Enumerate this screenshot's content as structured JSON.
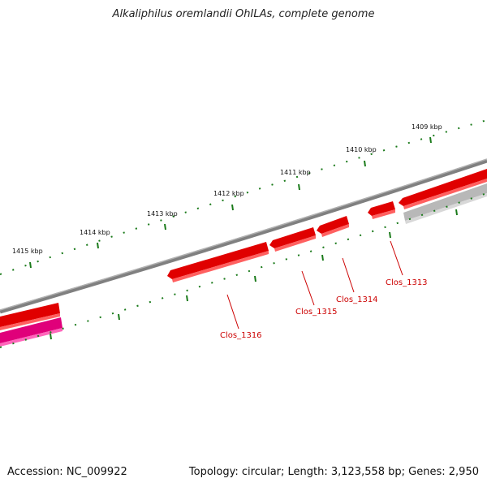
{
  "title": "Alkaliphilus oremlandii OhILAs, complete genome",
  "footer": {
    "accession": "Accession: NC_009922",
    "summary": "Topology: circular; Length: 3,123,558 bp; Genes: 2,950"
  },
  "scale_labels": [
    "1409 kbp",
    "1410 kbp",
    "1411 kbp",
    "1412 kbp",
    "1413 kbp",
    "1414 kbp",
    "1415 kbp"
  ],
  "genes": [
    {
      "name": "Clos_1313",
      "color": "#e00000"
    },
    {
      "name": "Clos_1314",
      "color": "#e00000"
    },
    {
      "name": "Clos_1315",
      "color": "#e00000"
    },
    {
      "name": "Clos_1316",
      "color": "#e00000"
    }
  ],
  "colors": {
    "gene_red": "#e00000",
    "gene_pink": "#e0007a",
    "gene_grey": "#b8b8b8",
    "backbone": "#808080",
    "ticks": "#1a7a1a"
  }
}
